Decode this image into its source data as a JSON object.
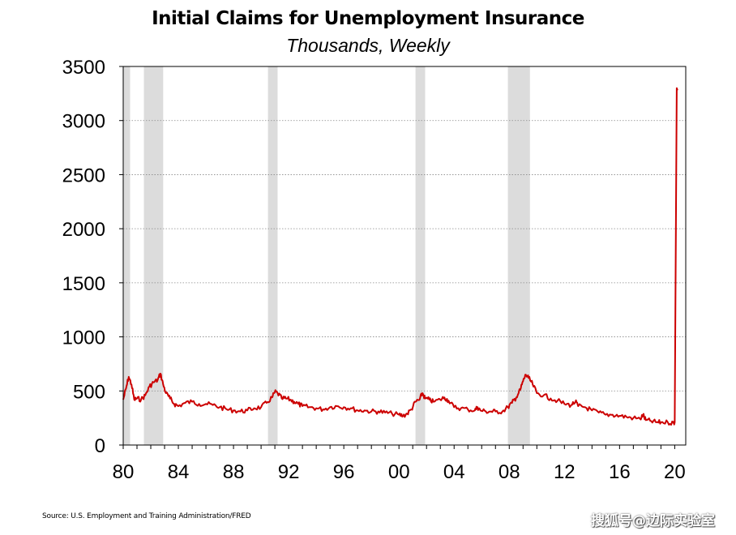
{
  "chart_data": {
    "type": "line",
    "title": "Initial Claims for Unemployment Insurance",
    "subtitle": "Thousands, Weekly",
    "xlabel": "",
    "ylabel": "",
    "xlim": [
      1980.0,
      2020.8
    ],
    "ylim": [
      0,
      3500
    ],
    "yticks": [
      0,
      500,
      1000,
      1500,
      2000,
      2500,
      3000,
      3500
    ],
    "xticks": [
      {
        "value": 1980,
        "label": "80"
      },
      {
        "value": 1984,
        "label": "84"
      },
      {
        "value": 1988,
        "label": "88"
      },
      {
        "value": 1992,
        "label": "92"
      },
      {
        "value": 1996,
        "label": "96"
      },
      {
        "value": 2000,
        "label": "00"
      },
      {
        "value": 2004,
        "label": "04"
      },
      {
        "value": 2008,
        "label": "08"
      },
      {
        "value": 2012,
        "label": "12"
      },
      {
        "value": 2016,
        "label": "16"
      },
      {
        "value": 2020,
        "label": "20"
      }
    ],
    "grid": "horizontal dotted",
    "recessions": [
      [
        1980.0,
        1980.5
      ],
      [
        1981.5,
        1982.9
      ],
      [
        1990.5,
        1991.2
      ],
      [
        2001.2,
        2001.9
      ],
      [
        2007.9,
        2009.5
      ]
    ],
    "series": [
      {
        "name": "",
        "color": "#cc0000",
        "x": [
          1980.0,
          1980.2,
          1980.4,
          1980.6,
          1980.8,
          1981.0,
          1981.3,
          1981.6,
          1981.9,
          1982.2,
          1982.5,
          1982.7,
          1982.9,
          1983.1,
          1983.4,
          1983.7,
          1984.0,
          1984.5,
          1985.0,
          1985.5,
          1986.0,
          1986.5,
          1987.0,
          1987.5,
          1988.0,
          1988.5,
          1989.0,
          1989.5,
          1990.0,
          1990.4,
          1990.8,
          1991.0,
          1991.2,
          1991.5,
          1991.8,
          1992.1,
          1992.4,
          1992.7,
          1993.0,
          1993.5,
          1994.0,
          1994.5,
          1995.0,
          1995.5,
          1996.0,
          1996.5,
          1997.0,
          1997.5,
          1998.0,
          1998.5,
          1999.0,
          1999.5,
          2000.0,
          2000.3,
          2000.6,
          2000.9,
          2001.2,
          2001.5,
          2001.7,
          2001.9,
          2002.2,
          2002.5,
          2003.0,
          2003.3,
          2003.6,
          2004.0,
          2004.5,
          2005.0,
          2005.5,
          2005.7,
          2005.9,
          2006.3,
          2006.7,
          2007.0,
          2007.5,
          2007.9,
          2008.2,
          2008.5,
          2008.8,
          2009.0,
          2009.2,
          2009.4,
          2009.7,
          2010.0,
          2010.5,
          2011.0,
          2011.5,
          2012.0,
          2012.5,
          2012.8,
          2013.0,
          2013.5,
          2014.0,
          2014.5,
          2015.0,
          2015.5,
          2016.0,
          2016.5,
          2017.0,
          2017.5,
          2017.7,
          2017.9,
          2018.3,
          2018.7,
          2019.0,
          2019.5,
          2019.9,
          2020.0,
          2020.15,
          2020.2
        ],
        "values": [
          420,
          520,
          630,
          560,
          420,
          430,
          420,
          460,
          540,
          580,
          600,
          660,
          560,
          480,
          430,
          380,
          360,
          390,
          400,
          380,
          380,
          370,
          350,
          330,
          320,
          310,
          320,
          340,
          350,
          390,
          440,
          490,
          480,
          430,
          430,
          420,
          400,
          380,
          360,
          350,
          340,
          330,
          350,
          360,
          350,
          340,
          320,
          320,
          310,
          310,
          300,
          290,
          280,
          270,
          290,
          330,
          400,
          420,
          480,
          430,
          420,
          400,
          420,
          440,
          410,
          350,
          340,
          330,
          320,
          350,
          320,
          310,
          310,
          310,
          310,
          350,
          390,
          440,
          510,
          590,
          650,
          620,
          560,
          480,
          460,
          430,
          410,
          380,
          370,
          400,
          360,
          350,
          320,
          300,
          280,
          280,
          270,
          260,
          250,
          240,
          280,
          230,
          220,
          210,
          210,
          210,
          205,
          210,
          3300,
          3280
        ]
      }
    ]
  },
  "source": "Source: U.S. Employment and Training Administration/FRED",
  "watermark": "搜狐号@边际实验室"
}
